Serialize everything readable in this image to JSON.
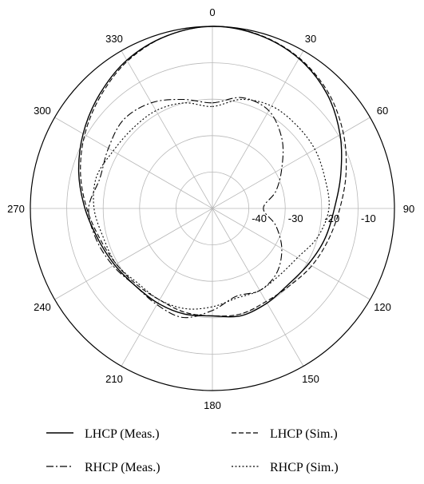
{
  "chart_data": {
    "type": "polar-line",
    "title": "",
    "angular_axis": {
      "unit": "degrees",
      "zero_direction": "top",
      "rotation": "clockwise",
      "ticks": [
        0,
        30,
        60,
        90,
        120,
        150,
        180,
        210,
        240,
        270,
        300,
        330
      ],
      "tick_labels": [
        "0",
        "30",
        "60",
        "90",
        "120",
        "150",
        "180",
        "210",
        "240",
        "270",
        "300",
        "330"
      ]
    },
    "radial_axis": {
      "unit": "dB",
      "range": [
        -50,
        0
      ],
      "ticks": [
        -40,
        -30,
        -20,
        -10
      ],
      "tick_labels": [
        "-40",
        "-30",
        "-20",
        "-10"
      ],
      "label_angle_deg": 90
    },
    "grid": true,
    "legend": {
      "placement": "bottom",
      "columns": 2
    },
    "series": [
      {
        "name": "LHCP (Meas.)",
        "style": "solid",
        "color": "#000000",
        "theta": [
          0,
          15,
          30,
          45,
          60,
          75,
          90,
          105,
          120,
          135,
          150,
          165,
          180,
          195,
          210,
          225,
          240,
          255,
          270,
          285,
          300,
          315,
          330,
          345,
          360
        ],
        "r": [
          0,
          -0.7,
          -2.5,
          -5.5,
          -9.5,
          -13.5,
          -16.5,
          -18,
          -19.5,
          -20.5,
          -20,
          -19.5,
          -20.5,
          -20,
          -20,
          -20,
          -19,
          -17.5,
          -15,
          -12,
          -9,
          -6,
          -3,
          -1,
          0
        ]
      },
      {
        "name": "LHCP (Sim.)",
        "style": "dashed",
        "color": "#000000",
        "theta": [
          0,
          15,
          30,
          45,
          60,
          75,
          90,
          105,
          120,
          135,
          150,
          165,
          180,
          195,
          210,
          225,
          240,
          255,
          270,
          285,
          300,
          315,
          330,
          345,
          360
        ],
        "r": [
          0,
          -0.6,
          -2.3,
          -5,
          -8.5,
          -12,
          -15,
          -17,
          -18.5,
          -20,
          -20.5,
          -20,
          -20.5,
          -20.5,
          -21,
          -20.5,
          -19.5,
          -18,
          -15.5,
          -12.5,
          -9.5,
          -6.5,
          -3.3,
          -1,
          0
        ]
      },
      {
        "name": "RHCP (Meas.)",
        "style": "dashdot",
        "color": "#000000",
        "theta": [
          0,
          15,
          30,
          45,
          60,
          75,
          90,
          105,
          120,
          135,
          150,
          165,
          180,
          195,
          210,
          225,
          240,
          255,
          270,
          285,
          300,
          315,
          330,
          345,
          360
        ],
        "r": [
          -21,
          -18.5,
          -19,
          -23,
          -28,
          -32,
          -36,
          -32,
          -28,
          -25,
          -24,
          -25,
          -22,
          -19,
          -19.5,
          -20,
          -18.5,
          -17,
          -16,
          -18,
          -17,
          -15.5,
          -16.5,
          -19,
          -21
        ]
      },
      {
        "name": "RHCP (Sim.)",
        "style": "dotted",
        "color": "#000000",
        "theta": [
          0,
          15,
          30,
          45,
          60,
          75,
          90,
          105,
          120,
          135,
          150,
          165,
          180,
          195,
          210,
          225,
          240,
          255,
          270,
          285,
          300,
          315,
          330,
          345,
          360
        ],
        "r": [
          -22,
          -19,
          -17.5,
          -17.5,
          -17.5,
          -18,
          -18,
          -20,
          -23,
          -24,
          -24,
          -24.5,
          -23,
          -21.5,
          -21,
          -21,
          -19.5,
          -19,
          -17.5,
          -17,
          -18.5,
          -19,
          -19,
          -20,
          -22
        ]
      }
    ]
  }
}
